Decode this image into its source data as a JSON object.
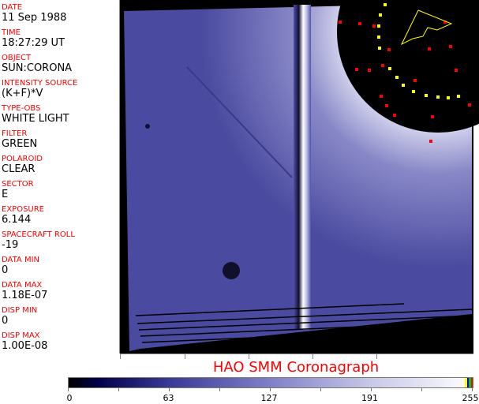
{
  "fields": [
    {
      "label": "DATE",
      "value": "11 Sep 1988"
    },
    {
      "label": "TIME",
      "value": "18:27:29 UT"
    },
    {
      "label": "OBJECT",
      "value": "SUN:CORONA"
    },
    {
      "label": "INTENSITY SOURCE",
      "value": "(K+F)*V"
    },
    {
      "label": "TYPE-OBS",
      "value": "WHITE LIGHT"
    },
    {
      "label": "FILTER",
      "value": "GREEN"
    },
    {
      "label": "POLAROID",
      "value": "CLEAR"
    },
    {
      "label": "SECTOR",
      "value": "E"
    },
    {
      "label": "EXPOSURE",
      "value": "6.144"
    },
    {
      "label": "SPACECRAFT ROLL",
      "value": "-19"
    },
    {
      "label": "DATA MIN",
      "value": "0"
    },
    {
      "label": "DATA MAX",
      "value": "1.18E-07"
    },
    {
      "label": "DISP MIN",
      "value": "0"
    },
    {
      "label": "DISP MAX",
      "value": "1.00E-08"
    }
  ],
  "title": "HAO  SMM Coronagraph",
  "colorbar": {
    "ticks": [
      "0",
      "63",
      "127",
      "191",
      "255"
    ],
    "min": 0,
    "max": 255,
    "end_colors": [
      "#ffff00",
      "#0000ff",
      "#00c000",
      "#ff0000"
    ]
  },
  "colors": {
    "label": "#ff0000",
    "corona": "#5a5aa8",
    "occulter": "#000000"
  }
}
